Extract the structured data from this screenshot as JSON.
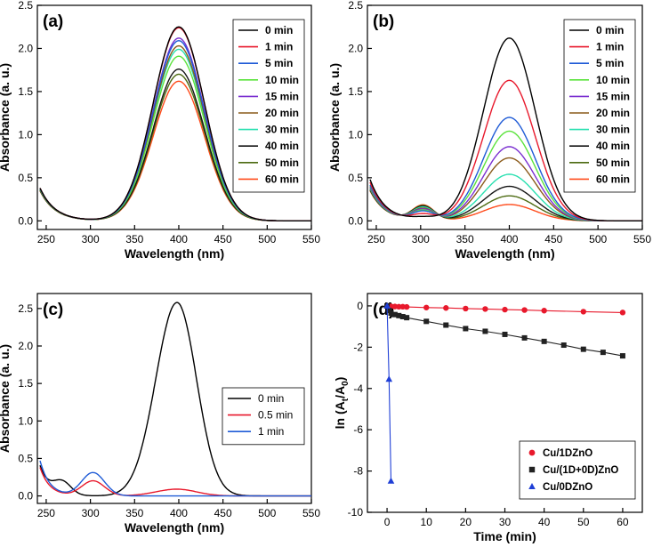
{
  "chart_data": [
    {
      "panel_label": "(a)",
      "type": "line",
      "xlabel": "Wavelength (nm)",
      "ylabel": "Absorbance (a. u.)",
      "xlim": [
        240,
        550
      ],
      "ylim": [
        -0.1,
        2.5
      ],
      "xticks": [
        250,
        300,
        350,
        400,
        450,
        500,
        550
      ],
      "yticks": [
        0.0,
        0.5,
        1.0,
        1.5,
        2.0,
        2.5
      ],
      "legend_position": "top-right",
      "peak_wavelength": 400,
      "baseline_start": 0.38,
      "series": [
        {
          "name": "0 min",
          "color": "#000000",
          "peak": 2.25
        },
        {
          "name": "1 min",
          "color": "#e8192c",
          "peak": 2.24
        },
        {
          "name": "5 min",
          "color": "#1f5bd6",
          "peak": 2.09
        },
        {
          "name": "10 min",
          "color": "#5be33c",
          "peak": 1.91
        },
        {
          "name": "15 min",
          "color": "#7a2fd0",
          "peak": 2.12
        },
        {
          "name": "20 min",
          "color": "#8a5a1a",
          "peak": 2.03
        },
        {
          "name": "30 min",
          "color": "#29e0b0",
          "peak": 1.99
        },
        {
          "name": "40 min",
          "color": "#151515",
          "peak": 1.76
        },
        {
          "name": "50 min",
          "color": "#4d6b12",
          "peak": 1.7
        },
        {
          "name": "60 min",
          "color": "#ff4a1a",
          "peak": 1.62
        }
      ]
    },
    {
      "panel_label": "(b)",
      "type": "line",
      "xlabel": "Wavelength (nm)",
      "ylabel": "Absorbance (a. u.)",
      "xlim": [
        240,
        550
      ],
      "ylim": [
        -0.1,
        2.5
      ],
      "xticks": [
        250,
        300,
        350,
        400,
        450,
        500,
        550
      ],
      "yticks": [
        0.0,
        0.5,
        1.0,
        1.5,
        2.0,
        2.5
      ],
      "legend_position": "top-right",
      "peak_wavelength": 400,
      "baseline_start": 0.48,
      "series": [
        {
          "name": "0 min",
          "color": "#000000",
          "peak": 2.12
        },
        {
          "name": "1 min",
          "color": "#e8192c",
          "peak": 1.63
        },
        {
          "name": "5 min",
          "color": "#1f5bd6",
          "peak": 1.2
        },
        {
          "name": "10 min",
          "color": "#5be33c",
          "peak": 1.04
        },
        {
          "name": "15 min",
          "color": "#7a2fd0",
          "peak": 0.86
        },
        {
          "name": "20 min",
          "color": "#8a5a1a",
          "peak": 0.73
        },
        {
          "name": "30 min",
          "color": "#29e0b0",
          "peak": 0.54
        },
        {
          "name": "40 min",
          "color": "#151515",
          "peak": 0.4
        },
        {
          "name": "50 min",
          "color": "#4d6b12",
          "peak": 0.29
        },
        {
          "name": "60 min",
          "color": "#ff4a1a",
          "peak": 0.19
        }
      ]
    },
    {
      "panel_label": "(c)",
      "type": "line",
      "xlabel": "Wavelength (nm)",
      "ylabel": "Absorbance (a. u.)",
      "xlim": [
        240,
        550
      ],
      "ylim": [
        -0.1,
        2.7
      ],
      "xticks": [
        250,
        300,
        350,
        400,
        450,
        500,
        550
      ],
      "yticks": [
        0.0,
        0.5,
        1.0,
        1.5,
        2.0,
        2.5
      ],
      "legend_position": "middle-right",
      "series": [
        {
          "name": "0 min",
          "color": "#000000",
          "peak_400": 2.58,
          "peak_300": 0.0,
          "start": 0.4
        },
        {
          "name": "0.5 min",
          "color": "#e8192c",
          "peak_400": 0.09,
          "peak_300": 0.2,
          "start": 0.38
        },
        {
          "name": "1 min",
          "color": "#1f5bd6",
          "peak_400": 0.0,
          "peak_300": 0.31,
          "start": 0.47
        }
      ]
    },
    {
      "panel_label": "(d)",
      "type": "scatter",
      "xlabel": "Time (min)",
      "ylabel": "ln (A",
      "ylabel_sub_t": "t",
      "ylabel_mid": "/A",
      "ylabel_sub_0": "0",
      "ylabel_end": ")",
      "xlim": [
        -5,
        65
      ],
      "ylim": [
        -10,
        0.6
      ],
      "xticks": [
        0,
        10,
        20,
        30,
        40,
        50,
        60
      ],
      "yticks": [
        0,
        -2,
        -4,
        -6,
        -8,
        -10
      ],
      "legend_position": "bottom-right",
      "series": [
        {
          "name": "Cu/1DZnO",
          "color": "#e8192c",
          "marker": "circle",
          "x": [
            0,
            0.5,
            1,
            2,
            3,
            4,
            5,
            10,
            15,
            20,
            25,
            30,
            35,
            40,
            50,
            60
          ],
          "y": [
            0,
            -0.01,
            -0.02,
            -0.03,
            -0.04,
            -0.04,
            -0.05,
            -0.08,
            -0.1,
            -0.13,
            -0.15,
            -0.18,
            -0.2,
            -0.23,
            -0.28,
            -0.32
          ]
        },
        {
          "name": "Cu/(1D+0D)ZnO",
          "color": "#222222",
          "marker": "square",
          "x": [
            0,
            0.5,
            1,
            2,
            3,
            4,
            5,
            10,
            15,
            20,
            25,
            30,
            35,
            40,
            45,
            50,
            55,
            60
          ],
          "y": [
            0,
            -0.22,
            -0.35,
            -0.42,
            -0.47,
            -0.52,
            -0.57,
            -0.75,
            -0.93,
            -1.1,
            -1.23,
            -1.38,
            -1.55,
            -1.72,
            -1.9,
            -2.1,
            -2.25,
            -2.42
          ]
        },
        {
          "name": "Cu/0DZnO",
          "color": "#1f3fd6",
          "marker": "triangle",
          "x": [
            0,
            0.5,
            1
          ],
          "y": [
            0,
            -3.55,
            -8.48
          ]
        }
      ]
    }
  ]
}
